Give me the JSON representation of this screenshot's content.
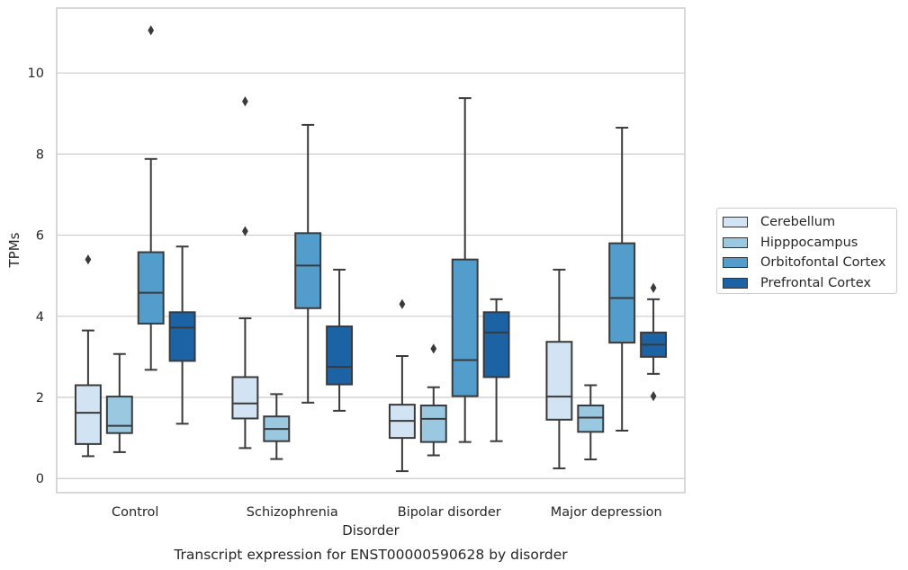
{
  "chart_data": {
    "type": "box",
    "caption": "Transcript expression for ENST00000590628 by disorder",
    "xlabel": "Disorder",
    "ylabel": "TPMs",
    "ylim": [
      -0.35,
      11.6
    ],
    "yticks": [
      0,
      2,
      4,
      6,
      8,
      10
    ],
    "grid": true,
    "legend_position": "right",
    "categories": [
      "Control",
      "Schizophrenia",
      "Bipolar disorder",
      "Major depression"
    ],
    "series": [
      {
        "name": "Cerebellum",
        "color": "#d2e3f3",
        "boxes": [
          {
            "whisker_low": 0.55,
            "q1": 0.85,
            "median": 1.62,
            "q3": 2.3,
            "whisker_high": 3.65,
            "outliers": [
              5.4
            ]
          },
          {
            "whisker_low": 0.75,
            "q1": 1.48,
            "median": 1.85,
            "q3": 2.5,
            "whisker_high": 3.95,
            "outliers": [
              9.3,
              6.1
            ]
          },
          {
            "whisker_low": 0.18,
            "q1": 1.0,
            "median": 1.42,
            "q3": 1.82,
            "whisker_high": 3.02,
            "outliers": [
              4.3
            ]
          },
          {
            "whisker_low": 0.25,
            "q1": 1.45,
            "median": 2.02,
            "q3": 3.37,
            "whisker_high": 5.15,
            "outliers": []
          }
        ]
      },
      {
        "name": "Hipppocampus",
        "color": "#9ac8e0",
        "boxes": [
          {
            "whisker_low": 0.65,
            "q1": 1.12,
            "median": 1.3,
            "q3": 2.02,
            "whisker_high": 3.07,
            "outliers": []
          },
          {
            "whisker_low": 0.48,
            "q1": 0.92,
            "median": 1.22,
            "q3": 1.53,
            "whisker_high": 2.08,
            "outliers": []
          },
          {
            "whisker_low": 0.57,
            "q1": 0.9,
            "median": 1.47,
            "q3": 1.8,
            "whisker_high": 2.25,
            "outliers": [
              3.2
            ]
          },
          {
            "whisker_low": 0.47,
            "q1": 1.15,
            "median": 1.5,
            "q3": 1.8,
            "whisker_high": 2.3,
            "outliers": []
          }
        ]
      },
      {
        "name": "Orbitofontal Cortex",
        "color": "#529dcc",
        "boxes": [
          {
            "whisker_low": 2.68,
            "q1": 3.82,
            "median": 4.58,
            "q3": 5.58,
            "whisker_high": 7.88,
            "outliers": [
              11.05
            ]
          },
          {
            "whisker_low": 1.87,
            "q1": 4.2,
            "median": 5.25,
            "q3": 6.05,
            "whisker_high": 8.72,
            "outliers": []
          },
          {
            "whisker_low": 0.9,
            "q1": 2.03,
            "median": 2.92,
            "q3": 5.4,
            "whisker_high": 9.38,
            "outliers": []
          },
          {
            "whisker_low": 1.18,
            "q1": 3.35,
            "median": 4.45,
            "q3": 5.8,
            "whisker_high": 8.65,
            "outliers": []
          }
        ]
      },
      {
        "name": "Prefrontal Cortex",
        "color": "#1b63a5",
        "boxes": [
          {
            "whisker_low": 1.35,
            "q1": 2.9,
            "median": 3.72,
            "q3": 4.1,
            "whisker_high": 5.72,
            "outliers": []
          },
          {
            "whisker_low": 1.67,
            "q1": 2.32,
            "median": 2.75,
            "q3": 3.75,
            "whisker_high": 5.15,
            "outliers": []
          },
          {
            "whisker_low": 0.92,
            "q1": 2.5,
            "median": 3.6,
            "q3": 4.1,
            "whisker_high": 4.42,
            "outliers": []
          },
          {
            "whisker_low": 2.58,
            "q1": 3.0,
            "median": 3.3,
            "q3": 3.6,
            "whisker_high": 4.42,
            "outliers": [
              4.7,
              2.03
            ]
          }
        ]
      }
    ]
  }
}
